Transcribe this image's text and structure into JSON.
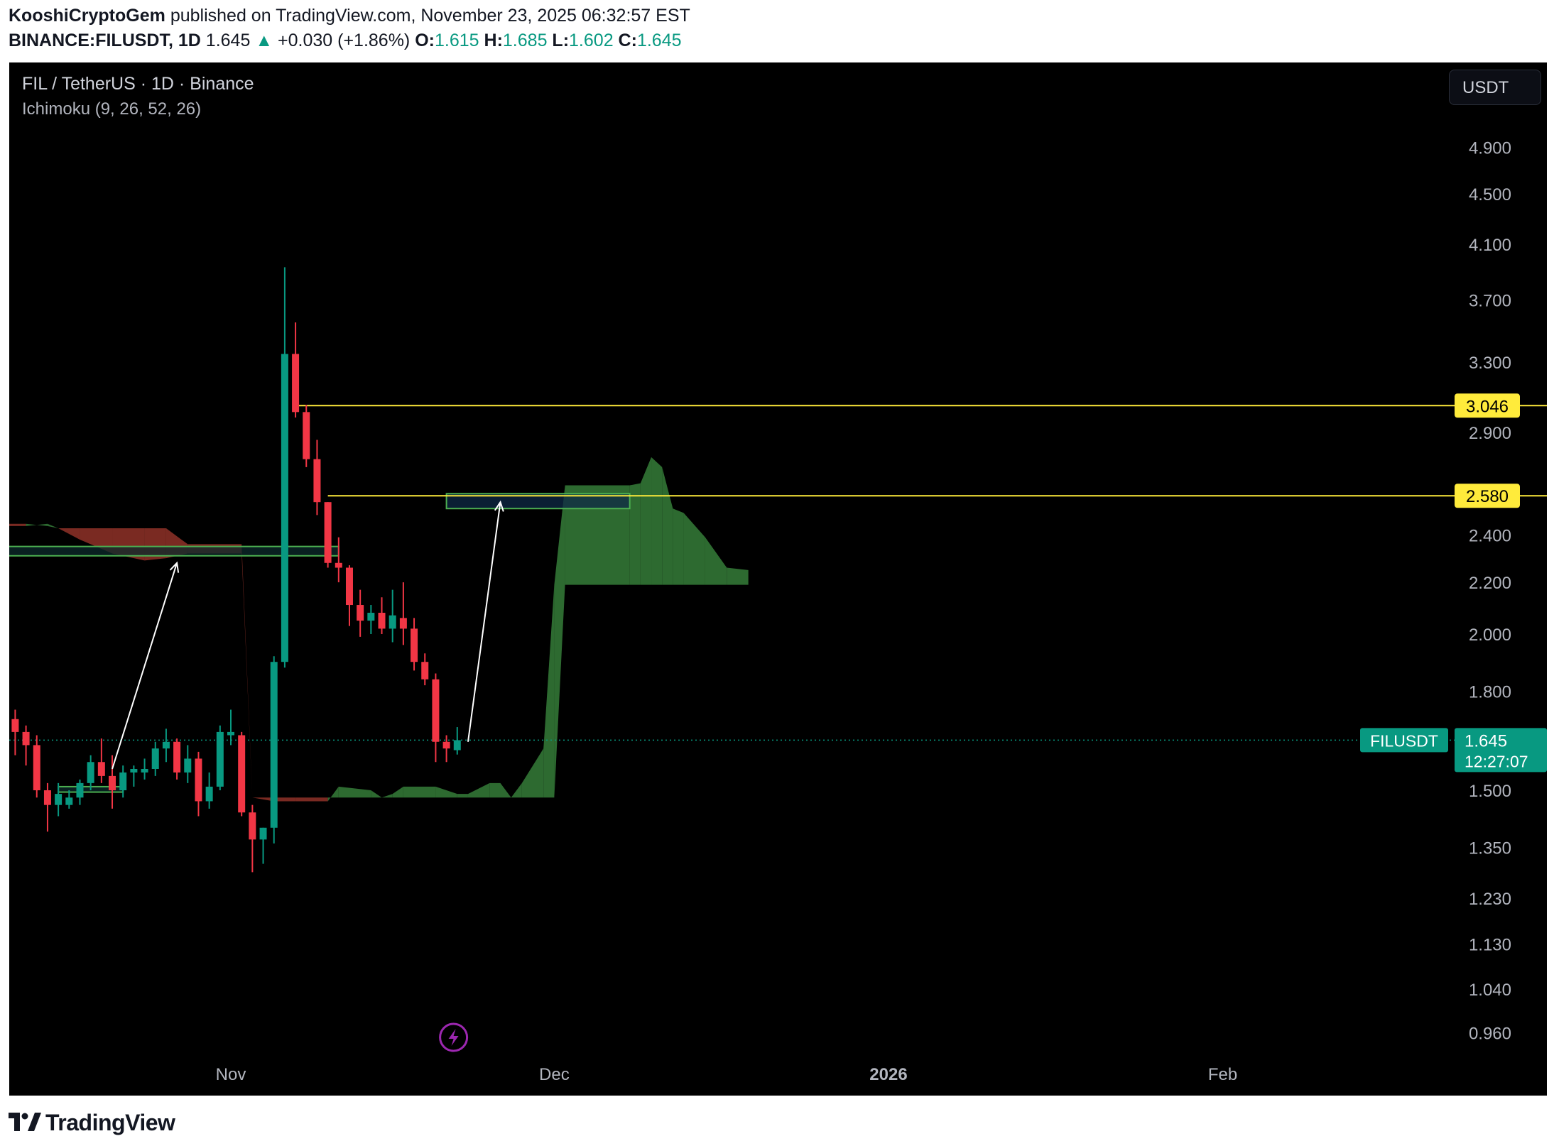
{
  "header": {
    "author": "KooshiCryptoGem",
    "published_text": "published on TradingView.com, November 23, 2025 06:32:57 EST",
    "symbol_line": "BINANCE:FILUSDT, 1D",
    "price": "1.645",
    "change_arrow": "▲",
    "change": "+0.030 (+1.86%)",
    "o_label": "O:",
    "o_value": "1.615",
    "h_label": "H:",
    "h_value": "1.685",
    "l_label": "L:",
    "l_value": "1.602",
    "c_label": "C:",
    "c_value": "1.645"
  },
  "legend": {
    "title": "FIL / TetherUS · 1D · Binance",
    "indicator": "Ichimoku (9, 26, 52, 26)"
  },
  "currency_button": "USDT",
  "footer": {
    "brand": "TradingView"
  },
  "colors": {
    "background": "#000000",
    "up": "#089981",
    "down": "#f23645",
    "kumo_bull": "#2d6a30",
    "kumo_bear": "#7a2a22",
    "level_line": "#ffeb3b",
    "price_tag": "#089981",
    "axis_text": "#b2b5be"
  },
  "chart_data": {
    "type": "candlestick",
    "symbol": "FILUSDT",
    "interval": "1D",
    "scale": "log",
    "ylim": [
      0.9,
      5.4
    ],
    "y_ticks": [
      "4.900",
      "4.500",
      "4.100",
      "3.700",
      "3.300",
      "2.900",
      "2.400",
      "2.200",
      "2.000",
      "1.800",
      "1.500",
      "1.350",
      "1.230",
      "1.130",
      "1.040",
      "0.960"
    ],
    "x_ticks": [
      {
        "label": "Nov",
        "date": "2025-11-01",
        "bold": false
      },
      {
        "label": "Dec",
        "date": "2025-12-01",
        "bold": false
      },
      {
        "label": "2026",
        "date": "2026-01-01",
        "bold": true
      },
      {
        "label": "Feb",
        "date": "2026-02-01",
        "bold": false
      }
    ],
    "x_range": [
      "2025-10-10",
      "2026-02-28"
    ],
    "candles": [
      {
        "d": "2025-10-10",
        "o": 1.62,
        "h": 1.7,
        "l": 1.48,
        "c": 1.66
      },
      {
        "d": "2025-10-11",
        "o": 1.66,
        "h": 1.74,
        "l": 1.58,
        "c": 1.71
      },
      {
        "d": "2025-10-12",
        "o": 1.71,
        "h": 1.74,
        "l": 1.6,
        "c": 1.67
      },
      {
        "d": "2025-10-13",
        "o": 1.67,
        "h": 1.69,
        "l": 1.57,
        "c": 1.63
      },
      {
        "d": "2025-10-14",
        "o": 1.63,
        "h": 1.66,
        "l": 1.48,
        "c": 1.5
      },
      {
        "d": "2025-10-15",
        "o": 1.5,
        "h": 1.52,
        "l": 1.39,
        "c": 1.46
      },
      {
        "d": "2025-10-16",
        "o": 1.46,
        "h": 1.52,
        "l": 1.43,
        "c": 1.49
      },
      {
        "d": "2025-10-17",
        "o": 1.46,
        "h": 1.5,
        "l": 1.45,
        "c": 1.48
      },
      {
        "d": "2025-10-18",
        "o": 1.48,
        "h": 1.53,
        "l": 1.46,
        "c": 1.52
      },
      {
        "d": "2025-10-19",
        "o": 1.52,
        "h": 1.6,
        "l": 1.5,
        "c": 1.58
      },
      {
        "d": "2025-10-20",
        "o": 1.58,
        "h": 1.65,
        "l": 1.52,
        "c": 1.54
      },
      {
        "d": "2025-10-21",
        "o": 1.54,
        "h": 1.6,
        "l": 1.45,
        "c": 1.5
      },
      {
        "d": "2025-10-22",
        "o": 1.5,
        "h": 1.57,
        "l": 1.48,
        "c": 1.55
      },
      {
        "d": "2025-10-23",
        "o": 1.55,
        "h": 1.57,
        "l": 1.51,
        "c": 1.56
      },
      {
        "d": "2025-10-24",
        "o": 1.55,
        "h": 1.59,
        "l": 1.53,
        "c": 1.56
      },
      {
        "d": "2025-10-25",
        "o": 1.56,
        "h": 1.64,
        "l": 1.54,
        "c": 1.62
      },
      {
        "d": "2025-10-26",
        "o": 1.62,
        "h": 1.68,
        "l": 1.58,
        "c": 1.64
      },
      {
        "d": "2025-10-27",
        "o": 1.64,
        "h": 1.65,
        "l": 1.53,
        "c": 1.55
      },
      {
        "d": "2025-10-28",
        "o": 1.55,
        "h": 1.63,
        "l": 1.52,
        "c": 1.59
      },
      {
        "d": "2025-10-29",
        "o": 1.59,
        "h": 1.61,
        "l": 1.43,
        "c": 1.47
      },
      {
        "d": "2025-10-30",
        "o": 1.47,
        "h": 1.55,
        "l": 1.45,
        "c": 1.51
      },
      {
        "d": "2025-10-31",
        "o": 1.51,
        "h": 1.69,
        "l": 1.5,
        "c": 1.67
      },
      {
        "d": "2025-11-01",
        "o": 1.66,
        "h": 1.74,
        "l": 1.63,
        "c": 1.67
      },
      {
        "d": "2025-11-02",
        "o": 1.66,
        "h": 1.67,
        "l": 1.43,
        "c": 1.44
      },
      {
        "d": "2025-11-03",
        "o": 1.44,
        "h": 1.46,
        "l": 1.29,
        "c": 1.37
      },
      {
        "d": "2025-11-04",
        "o": 1.37,
        "h": 1.4,
        "l": 1.31,
        "c": 1.4
      },
      {
        "d": "2025-11-05",
        "o": 1.4,
        "h": 1.92,
        "l": 1.36,
        "c": 1.9
      },
      {
        "d": "2025-11-06",
        "o": 1.9,
        "h": 3.93,
        "l": 1.88,
        "c": 3.35
      },
      {
        "d": "2025-11-07",
        "o": 3.35,
        "h": 3.55,
        "l": 2.98,
        "c": 3.01
      },
      {
        "d": "2025-11-08",
        "o": 3.01,
        "h": 3.05,
        "l": 2.72,
        "c": 2.76
      },
      {
        "d": "2025-11-09",
        "o": 2.76,
        "h": 2.86,
        "l": 2.49,
        "c": 2.55
      },
      {
        "d": "2025-11-10",
        "o": 2.55,
        "h": 2.55,
        "l": 2.26,
        "c": 2.28
      },
      {
        "d": "2025-11-11",
        "o": 2.28,
        "h": 2.39,
        "l": 2.2,
        "c": 2.26
      },
      {
        "d": "2025-11-12",
        "o": 2.26,
        "h": 2.27,
        "l": 2.03,
        "c": 2.11
      },
      {
        "d": "2025-11-13",
        "o": 2.11,
        "h": 2.17,
        "l": 1.99,
        "c": 2.05
      },
      {
        "d": "2025-11-14",
        "o": 2.05,
        "h": 2.11,
        "l": 2.0,
        "c": 2.08
      },
      {
        "d": "2025-11-15",
        "o": 2.08,
        "h": 2.14,
        "l": 2.0,
        "c": 2.02
      },
      {
        "d": "2025-11-16",
        "o": 2.02,
        "h": 2.17,
        "l": 1.97,
        "c": 2.07
      },
      {
        "d": "2025-11-17",
        "o": 2.06,
        "h": 2.2,
        "l": 1.96,
        "c": 2.02
      },
      {
        "d": "2025-11-18",
        "o": 2.02,
        "h": 2.06,
        "l": 1.87,
        "c": 1.9
      },
      {
        "d": "2025-11-19",
        "o": 1.9,
        "h": 1.93,
        "l": 1.82,
        "c": 1.84
      },
      {
        "d": "2025-11-20",
        "o": 1.84,
        "h": 1.86,
        "l": 1.58,
        "c": 1.64
      },
      {
        "d": "2025-11-21",
        "o": 1.64,
        "h": 1.66,
        "l": 1.58,
        "c": 1.62
      },
      {
        "d": "2025-11-22",
        "o": 1.615,
        "h": 1.685,
        "l": 1.602,
        "c": 1.645
      }
    ],
    "kumo": [
      {
        "d": "2025-10-10",
        "a": 2.44,
        "b": 2.45
      },
      {
        "d": "2025-10-13",
        "a": 2.44,
        "b": 2.45
      },
      {
        "d": "2025-10-15",
        "a": 2.45,
        "b": 2.44
      },
      {
        "d": "2025-10-16",
        "a": 2.43,
        "b": 2.43
      },
      {
        "d": "2025-10-18",
        "a": 2.38,
        "b": 2.43
      },
      {
        "d": "2025-10-21",
        "a": 2.32,
        "b": 2.43
      },
      {
        "d": "2025-10-24",
        "a": 2.29,
        "b": 2.43
      },
      {
        "d": "2025-10-26",
        "a": 2.3,
        "b": 2.43
      },
      {
        "d": "2025-10-28",
        "a": 2.32,
        "b": 2.36
      },
      {
        "d": "2025-11-02",
        "a": 2.32,
        "b": 2.36
      },
      {
        "d": "2025-11-03",
        "a": 1.48,
        "b": 1.48
      },
      {
        "d": "2025-11-05",
        "a": 1.47,
        "b": 1.48
      },
      {
        "d": "2025-11-07",
        "a": 1.47,
        "b": 1.48
      },
      {
        "d": "2025-11-10",
        "a": 1.47,
        "b": 1.48
      },
      {
        "d": "2025-11-11",
        "a": 1.51,
        "b": 1.48
      },
      {
        "d": "2025-11-14",
        "a": 1.5,
        "b": 1.48
      },
      {
        "d": "2025-11-15",
        "a": 1.48,
        "b": 1.48
      },
      {
        "d": "2025-11-16",
        "a": 1.49,
        "b": 1.48
      },
      {
        "d": "2025-11-17",
        "a": 1.51,
        "b": 1.48
      },
      {
        "d": "2025-11-20",
        "a": 1.51,
        "b": 1.48
      },
      {
        "d": "2025-11-22",
        "a": 1.49,
        "b": 1.48
      },
      {
        "d": "2025-11-23",
        "a": 1.49,
        "b": 1.48
      },
      {
        "d": "2025-11-25",
        "a": 1.52,
        "b": 1.48
      },
      {
        "d": "2025-11-26",
        "a": 1.52,
        "b": 1.48
      },
      {
        "d": "2025-11-27",
        "a": 1.48,
        "b": 1.48
      },
      {
        "d": "2025-11-28",
        "a": 1.52,
        "b": 1.48
      },
      {
        "d": "2025-11-30",
        "a": 1.62,
        "b": 1.48
      },
      {
        "d": "2025-12-01",
        "a": 2.19,
        "b": 1.48
      },
      {
        "d": "2025-12-02",
        "a": 2.63,
        "b": 2.19
      },
      {
        "d": "2025-12-08",
        "a": 2.63,
        "b": 2.19
      },
      {
        "d": "2025-12-09",
        "a": 2.64,
        "b": 2.19
      },
      {
        "d": "2025-12-10",
        "a": 2.77,
        "b": 2.19
      },
      {
        "d": "2025-12-11",
        "a": 2.72,
        "b": 2.19
      },
      {
        "d": "2025-12-12",
        "a": 2.52,
        "b": 2.19
      },
      {
        "d": "2025-12-13",
        "a": 2.5,
        "b": 2.19
      },
      {
        "d": "2025-12-15",
        "a": 2.39,
        "b": 2.19
      },
      {
        "d": "2025-12-17",
        "a": 2.26,
        "b": 2.19
      },
      {
        "d": "2025-12-19",
        "a": 2.25,
        "b": 2.19
      }
    ],
    "levels": [
      {
        "value": 3.046,
        "label": "3.046",
        "from": "2025-11-07"
      },
      {
        "value": 2.58,
        "label": "2.580",
        "from": "2025-11-10"
      }
    ],
    "zones": [
      {
        "from": "2025-10-10",
        "to": "2025-11-11",
        "low": 2.31,
        "high": 2.35,
        "fill": "#0c2b2c",
        "stroke": "#4caf50"
      },
      {
        "from": "2025-10-16",
        "to": "2025-10-22",
        "low": 1.495,
        "high": 1.51,
        "fill": "#0c2b2c",
        "stroke": "#4caf50"
      },
      {
        "from": "2025-11-21",
        "to": "2025-12-08",
        "low": 2.52,
        "high": 2.59,
        "fill": "#0f2a45",
        "stroke": "#4caf50"
      }
    ],
    "arrows": [
      {
        "from_d": "2025-10-21",
        "from_y": 1.56,
        "to_d": "2025-10-27",
        "to_y": 2.28
      },
      {
        "from_d": "2025-11-23",
        "from_y": 1.64,
        "to_d": "2025-11-26",
        "to_y": 2.55
      }
    ],
    "last_price": {
      "label": "FILUSDT",
      "value": "1.645",
      "countdown": "12:27:07",
      "y": 1.645
    }
  }
}
